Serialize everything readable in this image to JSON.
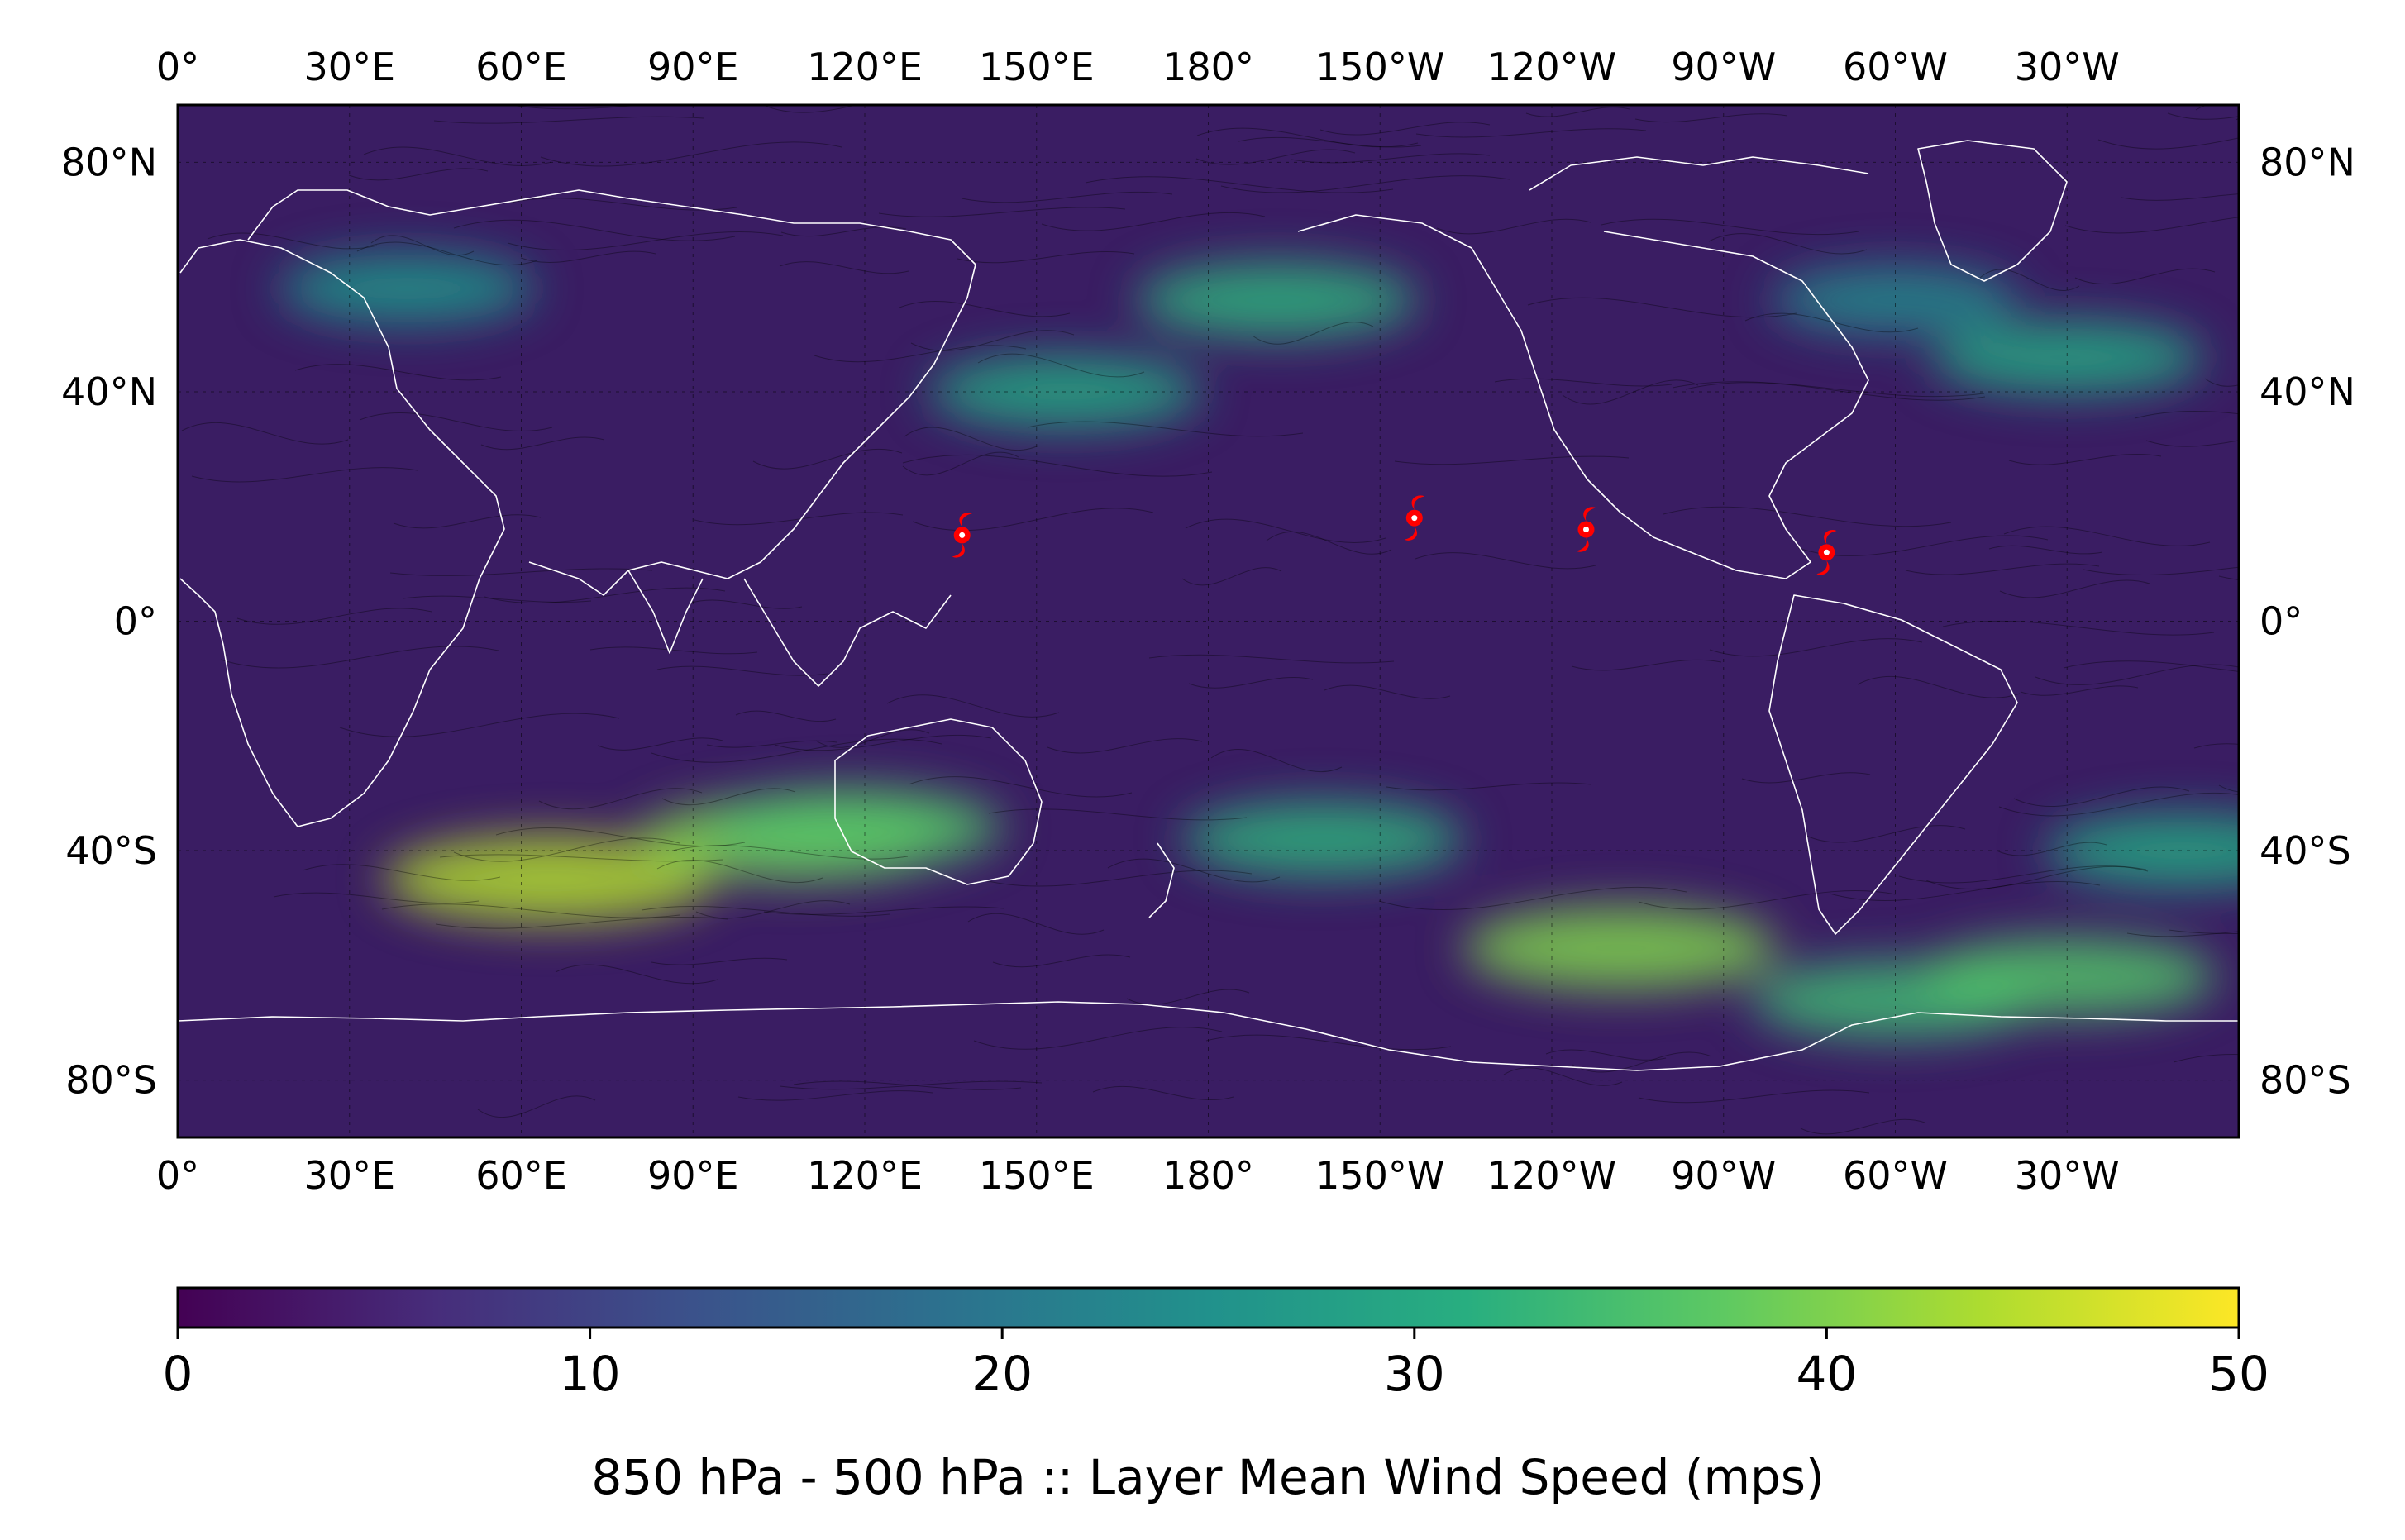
{
  "map": {
    "projection": "plate-carree",
    "central_longitude": 180,
    "extent": {
      "lon": [
        0,
        360
      ],
      "lat": [
        -90,
        90
      ]
    },
    "field": "850 hPa - 500 hPa layer mean wind speed",
    "units": "mps",
    "gridlines": true,
    "coastlines_color": "#ffffff",
    "streamlines_color": "#000000",
    "lon_labels": [
      "0°",
      "30°E",
      "60°E",
      "90°E",
      "120°E",
      "150°E",
      "180°",
      "150°W",
      "120°W",
      "90°W",
      "60°W",
      "30°W"
    ],
    "lon_label_values": [
      0,
      30,
      60,
      90,
      120,
      150,
      180,
      210,
      240,
      270,
      300,
      330
    ],
    "lat_labels": [
      "80°N",
      "40°N",
      "0°",
      "40°S",
      "80°S"
    ],
    "lat_label_values": [
      80,
      40,
      0,
      -40,
      -80
    ],
    "storm_marker_color": "#ff0000",
    "storms": [
      {
        "lon": 137,
        "lat": 15
      },
      {
        "lon": 216,
        "lat": 18
      },
      {
        "lon": 246,
        "lat": 16
      },
      {
        "lon": 288,
        "lat": 12
      }
    ],
    "jet_maxima": [
      {
        "lon": 65,
        "lat": -45,
        "speed": 44
      },
      {
        "lon": 108,
        "lat": -38,
        "speed": 40
      },
      {
        "lon": 118,
        "lat": -36,
        "speed": 36
      },
      {
        "lon": 200,
        "lat": -38,
        "speed": 32
      },
      {
        "lon": 252,
        "lat": -57,
        "speed": 40
      },
      {
        "lon": 300,
        "lat": -66,
        "speed": 34
      },
      {
        "lon": 330,
        "lat": -62,
        "speed": 36
      },
      {
        "lon": 350,
        "lat": -40,
        "speed": 30
      },
      {
        "lon": 155,
        "lat": 40,
        "speed": 30
      },
      {
        "lon": 192,
        "lat": 56,
        "speed": 32
      },
      {
        "lon": 330,
        "lat": 46,
        "speed": 30
      },
      {
        "lon": 40,
        "lat": 58,
        "speed": 26
      },
      {
        "lon": 300,
        "lat": 56,
        "speed": 24
      }
    ]
  },
  "colorbar": {
    "cmap": "viridis",
    "colors": [
      "#440154",
      "#472d7b",
      "#3b528b",
      "#2c728e",
      "#21918c",
      "#28ae80",
      "#5ec962",
      "#addc30",
      "#fde725"
    ],
    "range": [
      0,
      50
    ],
    "tick_labels": [
      "0",
      "10",
      "20",
      "30",
      "40",
      "50"
    ],
    "tick_values": [
      0,
      10,
      20,
      30,
      40,
      50
    ],
    "label": "850 hPa - 500 hPa :: Layer Mean Wind Speed (mps)"
  }
}
